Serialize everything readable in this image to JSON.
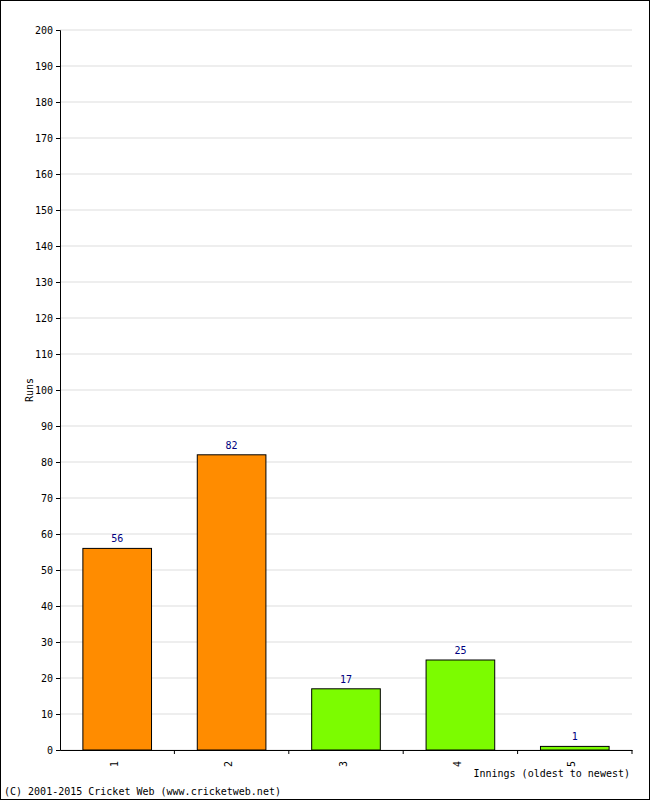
{
  "chart_data": {
    "type": "bar",
    "categories": [
      "1",
      "2",
      "3",
      "4",
      "5"
    ],
    "values": [
      56,
      82,
      17,
      25,
      1
    ],
    "colors": [
      "#ff8c00",
      "#ff8c00",
      "#7cfc00",
      "#7cfc00",
      "#7cfc00"
    ],
    "ylim": [
      0,
      200
    ],
    "yticks": [
      0,
      10,
      20,
      30,
      40,
      50,
      60,
      70,
      80,
      90,
      100,
      110,
      120,
      130,
      140,
      150,
      160,
      170,
      180,
      190,
      200
    ],
    "grid": true,
    "data_labels": true,
    "x_label": "Innings (oldest to newest)",
    "y_label": "Runs",
    "annotations": [
      "(C) 2001-2015 Cricket Web (www.cricketweb.net)"
    ]
  }
}
